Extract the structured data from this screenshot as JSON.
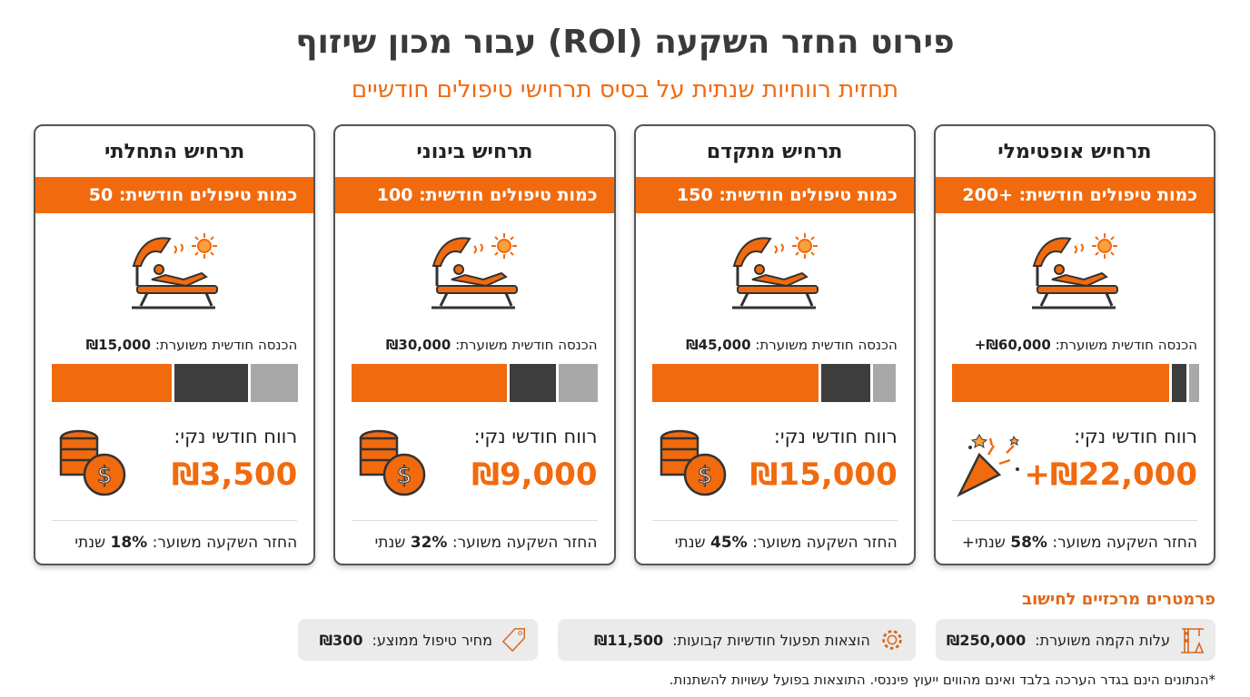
{
  "header": {
    "title": "פירוט החזר השקעה (ROI) עבור מכון שיזוף",
    "subtitle": "תחזית רווחיות שנתית על בסיס תרחישי טיפולים חודשיים"
  },
  "colors": {
    "accent": "#f26a0e",
    "dark": "#3d3d3d",
    "light": "#a8a8a8"
  },
  "cards": [
    {
      "title": "תרחיש אופטימלי",
      "treatments": "כמות טיפולים חודשית: +200",
      "income_label": "הכנסה חודשית משוערת:",
      "income_value": "₪60,000+",
      "bar": [
        0.885,
        0.06,
        0.04
      ],
      "profit_label": "רווח חודשי נקי:",
      "profit_value": "₪22,000+",
      "profit_icon": "party-popper-icon",
      "roi_label": "החזר השקעה משוער:",
      "roi_value": "58%",
      "roi_suffix": "שנתי+"
    },
    {
      "title": "תרחיש מתקדם",
      "treatments": "כמות טיפולים חודשית: 150",
      "income_label": "הכנסה חודשית משוערת:",
      "income_value": "₪45,000",
      "bar": [
        0.68,
        0.2,
        0.09
      ],
      "profit_label": "רווח חודשי נקי:",
      "profit_value": "₪15,000",
      "profit_icon": "coins-icon",
      "roi_label": "החזר השקעה משוער:",
      "roi_value": "45%",
      "roi_suffix": "שנתי"
    },
    {
      "title": "תרחיש בינוני",
      "treatments": "כמות טיפולים חודשית: 100",
      "income_label": "הכנסה חודשית משוערת:",
      "income_value": "₪30,000",
      "bar": [
        0.63,
        0.19,
        0.16
      ],
      "profit_label": "רווח חודשי נקי:",
      "profit_value": "₪9,000",
      "profit_icon": "coins-icon",
      "roi_label": "החזר השקעה משוער:",
      "roi_value": "32%",
      "roi_suffix": "שנתי"
    },
    {
      "title": "תרחיש התחלתי",
      "treatments": "כמות טיפולים חודשית: 50",
      "income_label": "הכנסה חודשית משוערת:",
      "income_value": "₪15,000",
      "bar": [
        0.49,
        0.3,
        0.19
      ],
      "profit_label": "רווח חודשי נקי:",
      "profit_value": "₪3,500",
      "profit_icon": "coins-icon",
      "roi_label": "החזר השקעה משוער:",
      "roi_value": "18%",
      "roi_suffix": "שנתי"
    }
  ],
  "params": {
    "title": "פרמטרים מרכזיים לחישוב",
    "items": [
      {
        "icon": "crane-icon",
        "label": "עלות הקמה משוערת:",
        "value": "₪250,000"
      },
      {
        "icon": "gear-icon",
        "label": "הוצאות תפעול חודשיות קבועות:",
        "value": "₪11,500"
      },
      {
        "icon": "price-tag-icon",
        "label": "מחיר טיפול ממוצע:",
        "value": "₪300"
      }
    ]
  },
  "note": "*הנתונים הינם בגדר הערכה בלבד ואינם מהווים ייעוץ פיננסי. התוצאות בפועל עשויות להשתנות."
}
